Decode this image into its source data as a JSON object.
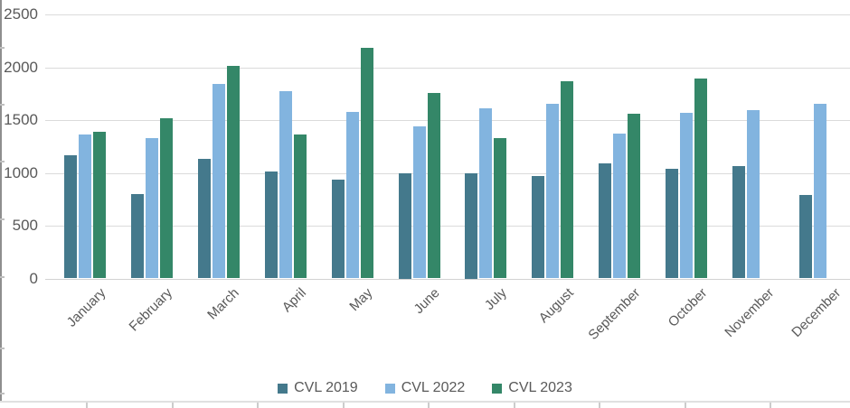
{
  "chart_data": {
    "type": "bar",
    "title": "",
    "categories": [
      "January",
      "February",
      "March",
      "April",
      "May",
      "June",
      "July",
      "August",
      "September",
      "October",
      "November",
      "December"
    ],
    "series": [
      {
        "name": "CVL 2019",
        "color": "#44798C",
        "values": [
          1170,
          800,
          1130,
          1010,
          940,
          1000,
          1000,
          970,
          1090,
          1040,
          1060,
          790
        ]
      },
      {
        "name": "CVL 2022",
        "color": "#82B4DF",
        "values": [
          1360,
          1330,
          1840,
          1770,
          1580,
          1440,
          1610,
          1650,
          1370,
          1570,
          1590,
          1650
        ]
      },
      {
        "name": "CVL 2023",
        "color": "#348768",
        "values": [
          1390,
          1520,
          2010,
          1360,
          2180,
          1760,
          1330,
          1870,
          1560,
          1890,
          null,
          null
        ]
      }
    ],
    "ylim": [
      0,
      2500
    ],
    "ytick_step": 500,
    "yticks": [
      0,
      500,
      1000,
      1500,
      2000,
      2500
    ],
    "grid": "horizontal-only",
    "gridline_color": "#DBDBDB",
    "axis_text_color": "#595959",
    "legend_position": "bottom",
    "xlabel_rotation_deg": -45
  }
}
